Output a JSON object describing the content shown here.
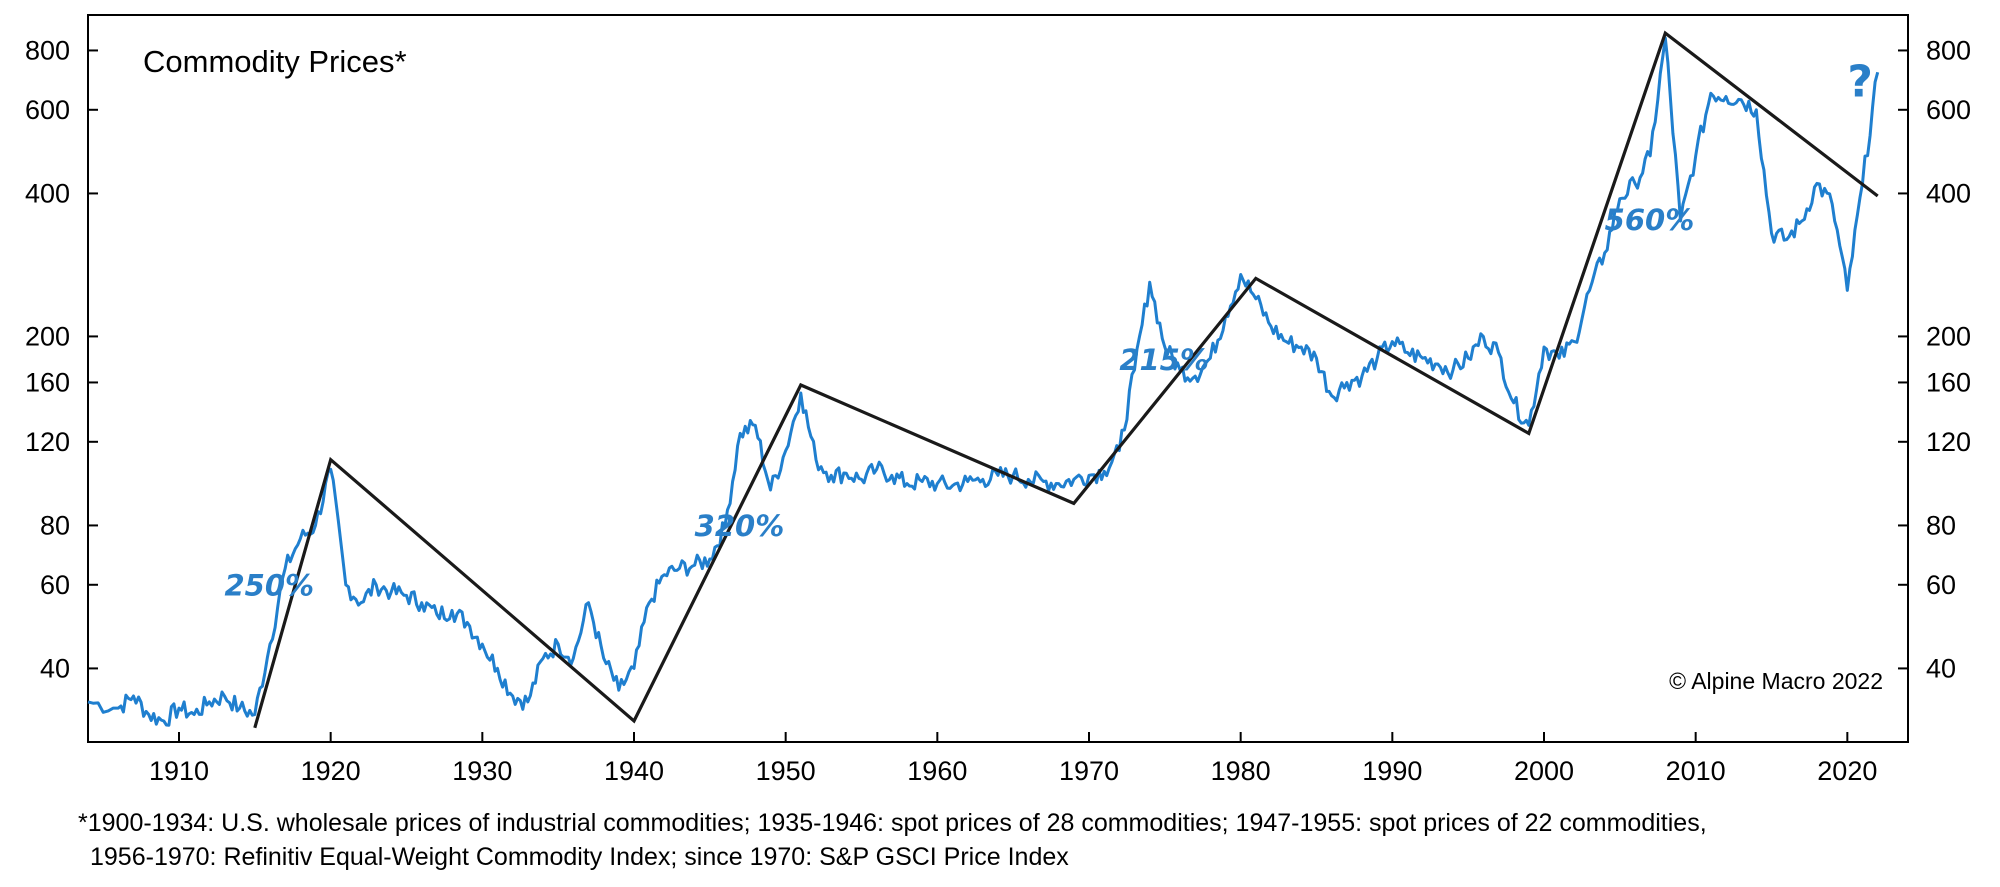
{
  "chart_data": {
    "type": "line",
    "title": "Commodity Prices*",
    "scale": "log",
    "xlim": [
      1904,
      2024
    ],
    "ylim": [
      28,
      950
    ],
    "x_ticks": [
      "1910",
      "1920",
      "1930",
      "1940",
      "1950",
      "1960",
      "1970",
      "1980",
      "1990",
      "2000",
      "2010",
      "2020"
    ],
    "y_ticks": [
      "40",
      "60",
      "80",
      "120",
      "160",
      "200",
      "400",
      "600",
      "800"
    ],
    "grid": false,
    "series": [
      {
        "color": "#1f7fcf",
        "points": [
          [
            1904,
            34
          ],
          [
            1906,
            33
          ],
          [
            1907,
            35
          ],
          [
            1908,
            32
          ],
          [
            1909,
            31
          ],
          [
            1910,
            33
          ],
          [
            1911,
            32
          ],
          [
            1912,
            34
          ],
          [
            1913,
            35
          ],
          [
            1914,
            33
          ],
          [
            1915,
            32
          ],
          [
            1916,
            45
          ],
          [
            1917,
            65
          ],
          [
            1918,
            75
          ],
          [
            1919,
            80
          ],
          [
            1920,
            105
          ],
          [
            1921,
            60
          ],
          [
            1922,
            55
          ],
          [
            1923,
            60
          ],
          [
            1924,
            58
          ],
          [
            1925,
            57
          ],
          [
            1926,
            55
          ],
          [
            1927,
            52
          ],
          [
            1928,
            53
          ],
          [
            1929,
            50
          ],
          [
            1930,
            45
          ],
          [
            1931,
            40
          ],
          [
            1932,
            35
          ],
          [
            1933,
            34
          ],
          [
            1934,
            42
          ],
          [
            1935,
            45
          ],
          [
            1936,
            42
          ],
          [
            1937,
            55
          ],
          [
            1938,
            42
          ],
          [
            1939,
            36
          ],
          [
            1940,
            40
          ],
          [
            1941,
            55
          ],
          [
            1942,
            63
          ],
          [
            1943,
            65
          ],
          [
            1944,
            66
          ],
          [
            1945,
            68
          ],
          [
            1946,
            80
          ],
          [
            1947,
            125
          ],
          [
            1948,
            130
          ],
          [
            1949,
            95
          ],
          [
            1950,
            115
          ],
          [
            1951,
            152
          ],
          [
            1952,
            110
          ],
          [
            1953,
            102
          ],
          [
            1954,
            103
          ],
          [
            1955,
            100
          ],
          [
            1956,
            105
          ],
          [
            1957,
            102
          ],
          [
            1958,
            98
          ],
          [
            1959,
            99
          ],
          [
            1960,
            98
          ],
          [
            1961,
            97
          ],
          [
            1962,
            99
          ],
          [
            1963,
            100
          ],
          [
            1964,
            102
          ],
          [
            1965,
            102
          ],
          [
            1966,
            100
          ],
          [
            1967,
            99
          ],
          [
            1968,
            98
          ],
          [
            1969,
            100
          ],
          [
            1970,
            102
          ],
          [
            1971,
            104
          ],
          [
            1972,
            115
          ],
          [
            1973,
            170
          ],
          [
            1974,
            260
          ],
          [
            1975,
            190
          ],
          [
            1976,
            170
          ],
          [
            1977,
            165
          ],
          [
            1978,
            180
          ],
          [
            1979,
            220
          ],
          [
            1980,
            270
          ],
          [
            1981,
            240
          ],
          [
            1982,
            210
          ],
          [
            1983,
            195
          ],
          [
            1984,
            190
          ],
          [
            1985,
            180
          ],
          [
            1986,
            150
          ],
          [
            1987,
            160
          ],
          [
            1988,
            165
          ],
          [
            1989,
            180
          ],
          [
            1990,
            195
          ],
          [
            1991,
            185
          ],
          [
            1992,
            180
          ],
          [
            1993,
            175
          ],
          [
            1994,
            170
          ],
          [
            1995,
            180
          ],
          [
            1996,
            200
          ],
          [
            1997,
            185
          ],
          [
            1998,
            145
          ],
          [
            1999,
            130
          ],
          [
            2000,
            190
          ],
          [
            2001,
            180
          ],
          [
            2002,
            195
          ],
          [
            2003,
            250
          ],
          [
            2004,
            300
          ],
          [
            2005,
            390
          ],
          [
            2006,
            420
          ],
          [
            2007,
            480
          ],
          [
            2008,
            850
          ],
          [
            2009,
            350
          ],
          [
            2010,
            480
          ],
          [
            2011,
            650
          ],
          [
            2012,
            640
          ],
          [
            2013,
            630
          ],
          [
            2014,
            600
          ],
          [
            2015,
            330
          ],
          [
            2016,
            320
          ],
          [
            2017,
            350
          ],
          [
            2018,
            420
          ],
          [
            2019,
            380
          ],
          [
            2020,
            250
          ],
          [
            2021,
            420
          ],
          [
            2022,
            720
          ]
        ]
      }
    ],
    "trend_lines": [
      {
        "color": "#000000",
        "points": [
          [
            1915,
            30
          ],
          [
            1920,
            110
          ],
          [
            1940,
            31
          ],
          [
            1951,
            158
          ],
          [
            1969,
            89
          ],
          [
            1981,
            265
          ],
          [
            1999,
            125
          ],
          [
            2008,
            870
          ],
          [
            2022,
            395
          ]
        ]
      }
    ],
    "annotations": [
      {
        "text": "250%",
        "x": 1913,
        "y": 57
      },
      {
        "text": "320%",
        "x": 1944,
        "y": 76
      },
      {
        "text": "215%",
        "x": 1972,
        "y": 170
      },
      {
        "text": "560%",
        "x": 2004,
        "y": 335
      },
      {
        "text": "?",
        "x": 2020,
        "y": 640
      }
    ],
    "copyright": "© Alpine Macro 2022"
  },
  "footnote": {
    "line1": "*1900-1934: U.S. wholesale prices of industrial commodities; 1935-1946: spot prices of 28 commodities; 1947-1955: spot prices of 22 commodities,",
    "line2": "1956-1970: Refinitiv Equal-Weight Commodity Index; since 1970: S&P GSCI Price Index"
  }
}
